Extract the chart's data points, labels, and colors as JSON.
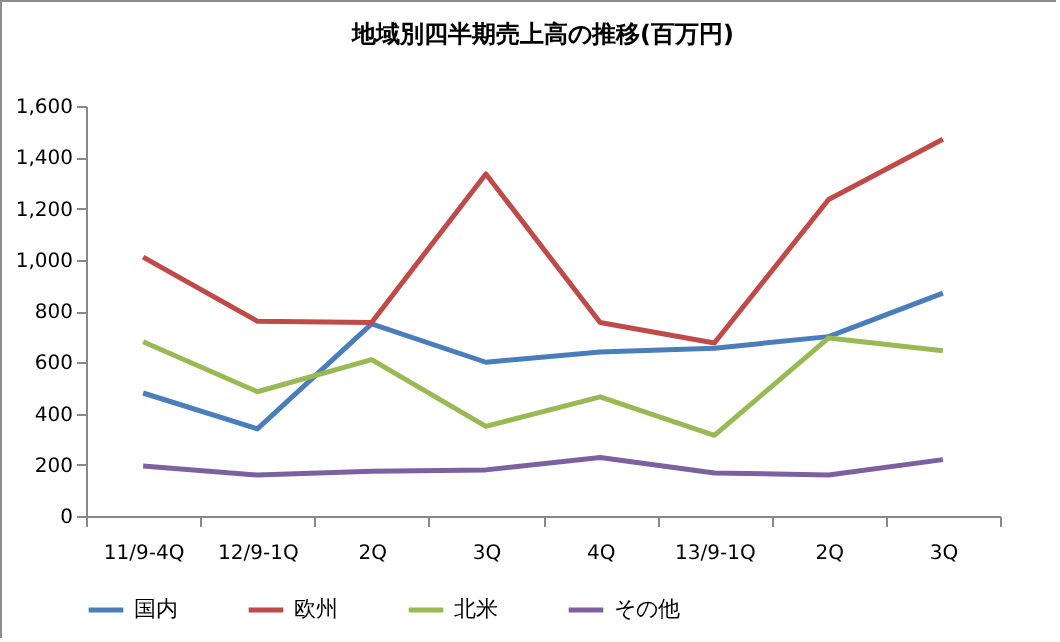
{
  "chart_data": {
    "type": "line",
    "title": "地域別四半期売上高の推移(百万円)",
    "categories": [
      "11/9-4Q",
      "12/9-1Q",
      "2Q",
      "3Q",
      "4Q",
      "13/9-1Q",
      "2Q",
      "3Q"
    ],
    "series": [
      {
        "name": "国内",
        "color": "#4a7ebb",
        "values": [
          480,
          340,
          750,
          600,
          640,
          655,
          700,
          870
        ]
      },
      {
        "name": "欧州",
        "color": "#be4b48",
        "values": [
          1010,
          760,
          755,
          1335,
          755,
          675,
          1235,
          1470
        ]
      },
      {
        "name": "北米",
        "color": "#98b954",
        "values": [
          680,
          485,
          610,
          350,
          465,
          315,
          695,
          645
        ]
      },
      {
        "name": "その他",
        "color": "#7d60a0",
        "values": [
          195,
          160,
          175,
          180,
          228,
          168,
          160,
          220
        ]
      }
    ],
    "ylim": [
      0,
      1600
    ],
    "yticks": [
      {
        "value": 0,
        "label": "0"
      },
      {
        "value": 200,
        "label": "200"
      },
      {
        "value": 400,
        "label": "400"
      },
      {
        "value": 600,
        "label": "600"
      },
      {
        "value": 800,
        "label": "800"
      },
      {
        "value": 1000,
        "label": "1,000"
      },
      {
        "value": 1200,
        "label": "1,200"
      },
      {
        "value": 1400,
        "label": "1,400"
      },
      {
        "value": 1600,
        "label": "1,600"
      }
    ],
    "grid": false,
    "legend": "bottom",
    "marker": "none",
    "line_style": "solid"
  }
}
